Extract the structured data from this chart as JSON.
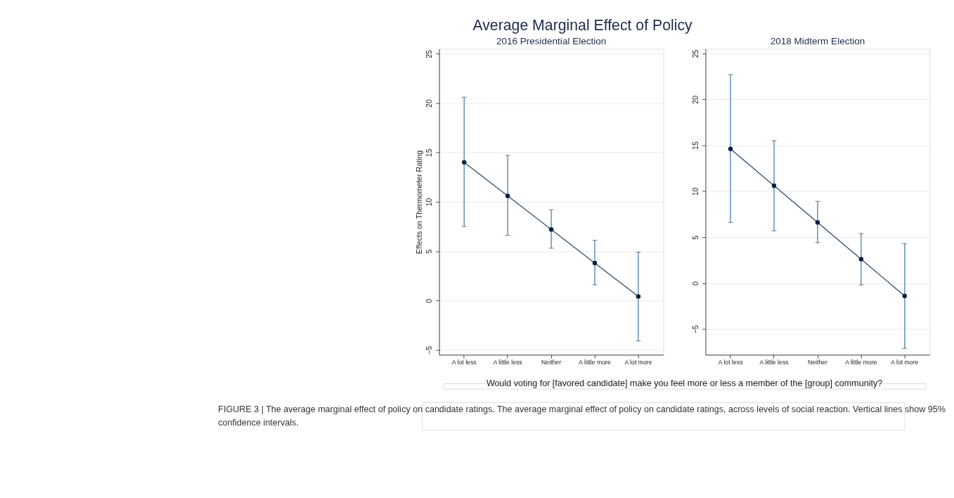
{
  "chart_data": [
    {
      "type": "line",
      "title": "2016 Presidential Election",
      "ylabel": "Effects on Thermometer Rating",
      "xlabel": "Would voting for [favored candidate] make you feel more or less a member of the [group] community?",
      "annotations": [
        "Average Marginal Effect of Policy",
        "FIGURE 3 | The average marginal effect of policy on candidate ratings. The average marginal effect of policy on candidate ratings, across levels of social reaction. Vertical lines show 95% confidence intervals."
      ],
      "categories": [
        "A lot less",
        "A little less",
        "Neither",
        "A little more",
        "A lot more"
      ],
      "series": [
        {
          "color": "#2b4a6b",
          "values": [
            14.0,
            10.6,
            7.2,
            3.8,
            0.4
          ],
          "errors": [
            [
              7.5,
              20.6
            ],
            [
              6.6,
              14.7
            ],
            [
              5.3,
              9.2
            ],
            [
              1.6,
              6.1
            ],
            [
              -4.1,
              4.9
            ]
          ]
        }
      ],
      "ylim": [
        -5.5,
        25.5
      ],
      "yticks": [
        -5,
        0,
        5,
        10,
        15,
        20,
        25
      ],
      "grid": "y",
      "marker": "circle"
    },
    {
      "type": "line",
      "title": "2018 Midterm Election",
      "categories": [
        "A lot less",
        "A little less",
        "Neither",
        "A little more",
        "A lot more"
      ],
      "series": [
        {
          "color": "#2b4a6b",
          "values": [
            14.6,
            10.6,
            6.6,
            2.6,
            -1.4
          ],
          "errors": [
            [
              6.6,
              22.7
            ],
            [
              5.7,
              15.5
            ],
            [
              4.4,
              8.9
            ],
            [
              -0.2,
              5.4
            ],
            [
              -7.1,
              4.3
            ]
          ]
        }
      ],
      "ylim": [
        -7.8,
        25.5
      ],
      "yticks": [
        -5,
        0,
        5,
        10,
        15,
        20,
        25
      ],
      "grid": "y",
      "marker": "circle"
    }
  ]
}
